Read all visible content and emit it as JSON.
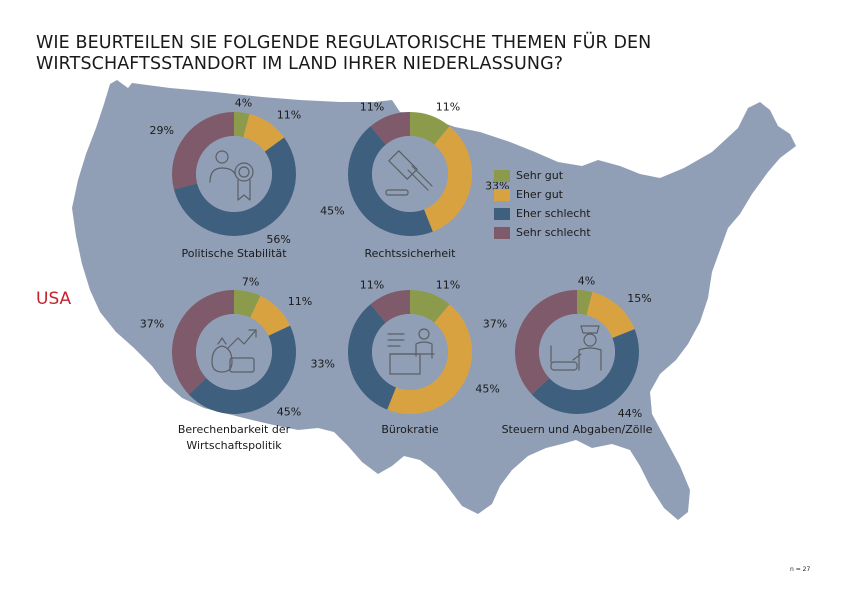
{
  "title": {
    "line1": "WIE BEURTEILEN SIE FOLGENDE REGULATORISCHE THEMEN FÜR DEN",
    "line2": "WIRTSCHAFTSSTANDORT IM LAND IHRER NIEDERLASSUNG?"
  },
  "country": "USA",
  "note": "n = 27",
  "colors": {
    "map": "#919fb6",
    "sehr_gut": "#8c9b4b",
    "eher_gut": "#d9a241",
    "eher_schlecht": "#3f5f7f",
    "sehr_schlecht": "#7e5a6a",
    "icon": "#5a5f66"
  },
  "legend": [
    {
      "label": "Sehr gut",
      "color": "#8c9b4b"
    },
    {
      "label": "Eher gut",
      "color": "#d9a241"
    },
    {
      "label": "Eher schlecht",
      "color": "#3f5f7f"
    },
    {
      "label": "Sehr schlecht",
      "color": "#7e5a6a"
    }
  ],
  "chart_data": [
    {
      "type": "pie",
      "variant": "donut",
      "label": "Politische Stabilität",
      "icon": "person-award-icon",
      "categories": [
        "Sehr gut",
        "Eher gut",
        "Eher schlecht",
        "Sehr schlecht"
      ],
      "values": [
        4,
        11,
        56,
        29
      ],
      "value_labels": [
        "4%",
        "11%",
        "56%",
        "29%"
      ]
    },
    {
      "type": "pie",
      "variant": "donut",
      "label": "Rechtssicherheit",
      "icon": "gavel-icon",
      "categories": [
        "Sehr gut",
        "Eher gut",
        "Eher schlecht",
        "Sehr schlecht"
      ],
      "values": [
        11,
        33,
        45,
        11
      ],
      "value_labels": [
        "11%",
        "33%",
        "45%",
        "11%"
      ]
    },
    {
      "type": "pie",
      "variant": "donut",
      "label": "Berechenbarkeit der Wirtschaftspolitik",
      "icon": "money-growth-icon",
      "categories": [
        "Sehr gut",
        "Eher gut",
        "Eher schlecht",
        "Sehr schlecht"
      ],
      "values": [
        7,
        11,
        45,
        37
      ],
      "value_labels": [
        "7%",
        "11%",
        "45%",
        "37%"
      ]
    },
    {
      "type": "pie",
      "variant": "donut",
      "label": "Bürokratie",
      "icon": "office-desk-icon",
      "categories": [
        "Sehr gut",
        "Eher gut",
        "Eher schlecht",
        "Sehr schlecht"
      ],
      "values": [
        11,
        45,
        33,
        11
      ],
      "value_labels": [
        "11%",
        "45%",
        "33%",
        "11%"
      ]
    },
    {
      "type": "pie",
      "variant": "donut",
      "label": "Steuern und Abgaben/Zölle",
      "icon": "customs-officer-icon",
      "categories": [
        "Sehr gut",
        "Eher gut",
        "Eher schlecht",
        "Sehr schlecht"
      ],
      "values": [
        4,
        15,
        44,
        37
      ],
      "value_labels": [
        "4%",
        "15%",
        "44%",
        "37%"
      ]
    }
  ]
}
